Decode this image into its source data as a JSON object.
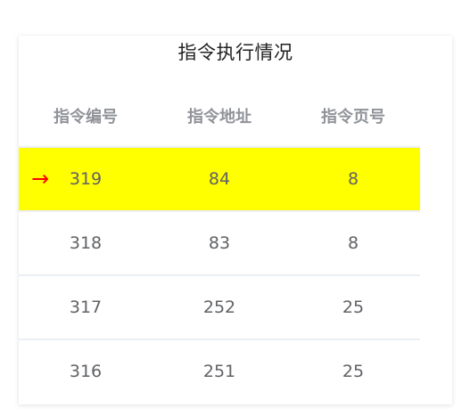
{
  "title": "指令执行情况",
  "columns": [
    "指令编号",
    "指令地址",
    "指令页号"
  ],
  "rows": [
    {
      "id": "319",
      "address": "84",
      "page": "8",
      "current": true
    },
    {
      "id": "318",
      "address": "83",
      "page": "8",
      "current": false
    },
    {
      "id": "317",
      "address": "252",
      "page": "25",
      "current": false
    },
    {
      "id": "316",
      "address": "251",
      "page": "25",
      "current": false
    }
  ],
  "current_marker": "→",
  "colors": {
    "highlight": "#ffff00",
    "marker": "#ff0000",
    "header_text": "#909399",
    "cell_text": "#606266"
  }
}
